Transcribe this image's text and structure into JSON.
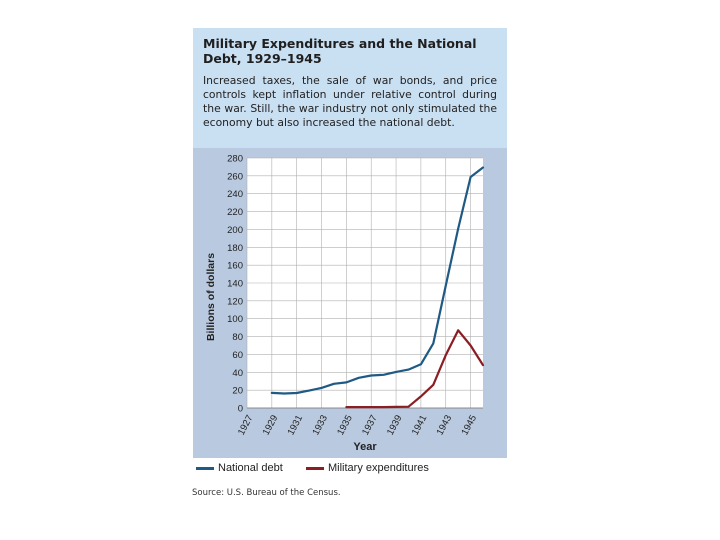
{
  "header": {
    "title": "Military Expenditures and the National Debt, 1929–1945",
    "description": "Increased taxes, the sale of war bonds, and price controls kept inflation under relative control during the war. Still, the war industry not only stimulated the economy but also increased the national debt."
  },
  "source": "Source: U.S. Bureau of the Census.",
  "chart_data": {
    "type": "line",
    "title": "Military Expenditures and the National Debt, 1929–1945",
    "xlabel": "Year",
    "ylabel": "Billions of dollars",
    "xlim": [
      1927,
      1946
    ],
    "ylim": [
      0,
      280
    ],
    "xticks": [
      1927,
      1929,
      1931,
      1933,
      1935,
      1937,
      1939,
      1941,
      1943,
      1945
    ],
    "yticks": [
      0,
      20,
      40,
      60,
      80,
      100,
      120,
      140,
      160,
      180,
      200,
      220,
      240,
      260,
      280
    ],
    "grid": true,
    "legend_position": "bottom",
    "series": [
      {
        "name": "National debt",
        "color": "#1f5a85",
        "points": [
          [
            1929,
            16.9
          ],
          [
            1930,
            16.2
          ],
          [
            1931,
            16.8
          ],
          [
            1932,
            19.5
          ],
          [
            1933,
            22.5
          ],
          [
            1934,
            27.1
          ],
          [
            1935,
            28.7
          ],
          [
            1936,
            33.8
          ],
          [
            1937,
            36.4
          ],
          [
            1938,
            37.2
          ],
          [
            1939,
            40.4
          ],
          [
            1940,
            43.0
          ],
          [
            1941,
            49.0
          ],
          [
            1942,
            72.4
          ],
          [
            1943,
            136.7
          ],
          [
            1944,
            201.0
          ],
          [
            1945,
            258.7
          ],
          [
            1946,
            269.4
          ]
        ]
      },
      {
        "name": "Military expenditures",
        "color": "#8b1e22",
        "points": [
          [
            1935,
            1.0
          ],
          [
            1936,
            1.0
          ],
          [
            1937,
            1.0
          ],
          [
            1938,
            1.0
          ],
          [
            1939,
            1.2
          ],
          [
            1940,
            1.5
          ],
          [
            1941,
            13.0
          ],
          [
            1942,
            26.0
          ],
          [
            1943,
            59.0
          ],
          [
            1944,
            87.0
          ],
          [
            1945,
            70.0
          ],
          [
            1946,
            48.0
          ]
        ]
      }
    ]
  }
}
